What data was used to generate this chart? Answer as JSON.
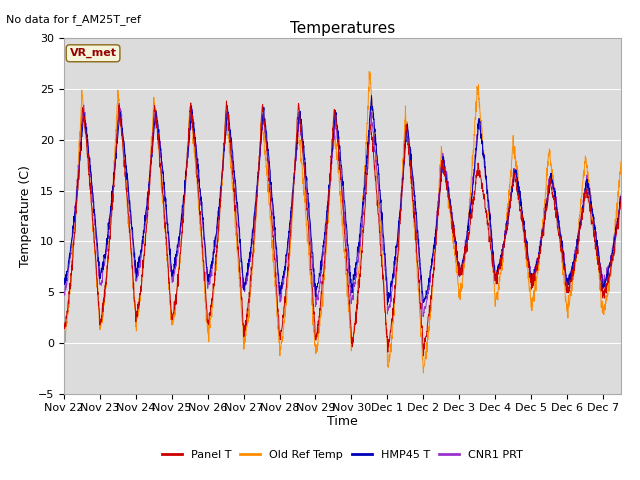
{
  "title": "Temperatures",
  "subtitle": "No data for f_AM25T_ref",
  "ylabel": "Temperature (C)",
  "xlabel": "Time",
  "annotation": "VR_met",
  "ylim": [
    -5,
    30
  ],
  "yticks": [
    -5,
    0,
    5,
    10,
    15,
    20,
    25,
    30
  ],
  "xtick_labels": [
    "Nov 22",
    "Nov 23",
    "Nov 24",
    "Nov 25",
    "Nov 26",
    "Nov 27",
    "Nov 28",
    "Nov 29",
    "Nov 30",
    "Dec 1",
    "Dec 2",
    "Dec 3",
    "Dec 4",
    "Dec 5",
    "Dec 6",
    "Dec 7"
  ],
  "colors": {
    "Panel T": "#cc0000",
    "Old Ref Temp": "#ff8c00",
    "HMP45 T": "#0000bb",
    "CNR1 PRT": "#9933cc"
  },
  "bg_color": "#dcdcdc",
  "legend_entries": [
    "Panel T",
    "Old Ref Temp",
    "HMP45 T",
    "CNR1 PRT"
  ]
}
